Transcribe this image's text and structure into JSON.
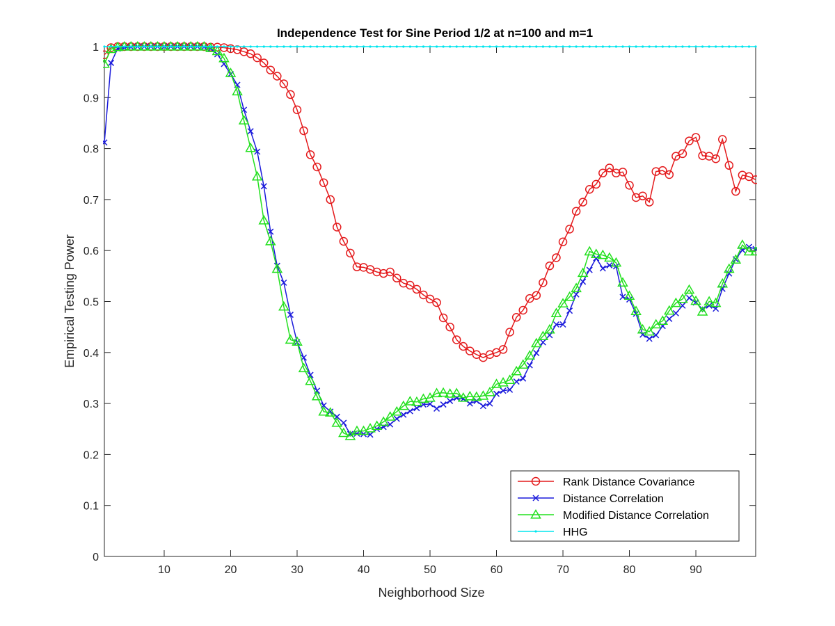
{
  "chart_data": {
    "type": "line",
    "title": "Independence Test for Sine Period 1/2 at n=100 and m=1",
    "xlabel": "Neighborhood Size",
    "ylabel": "Empirical Testing Power",
    "xlim": [
      1,
      99
    ],
    "ylim": [
      0,
      1
    ],
    "xticks": [
      10,
      20,
      30,
      40,
      50,
      60,
      70,
      80,
      90
    ],
    "yticks": [
      0,
      0.1,
      0.2,
      0.3,
      0.4,
      0.5,
      0.6,
      0.7,
      0.8,
      0.9,
      1
    ],
    "ytick_labels": [
      "0",
      "0.1",
      "0.2",
      "0.3",
      "0.4",
      "0.5",
      "0.6",
      "0.7",
      "0.8",
      "0.9",
      "1"
    ],
    "grid": false,
    "legend_position": "bottom-right",
    "x": [
      1,
      2,
      3,
      4,
      5,
      6,
      7,
      8,
      9,
      10,
      11,
      12,
      13,
      14,
      15,
      16,
      17,
      18,
      19,
      20,
      21,
      22,
      23,
      24,
      25,
      26,
      27,
      28,
      29,
      30,
      31,
      32,
      33,
      34,
      35,
      36,
      37,
      38,
      39,
      40,
      41,
      42,
      43,
      44,
      45,
      46,
      47,
      48,
      49,
      50,
      51,
      52,
      53,
      54,
      55,
      56,
      57,
      58,
      59,
      60,
      61,
      62,
      63,
      64,
      65,
      66,
      67,
      68,
      69,
      70,
      71,
      72,
      73,
      74,
      75,
      76,
      77,
      78,
      79,
      80,
      81,
      82,
      83,
      84,
      85,
      86,
      87,
      88,
      89,
      90,
      91,
      92,
      93,
      94,
      95,
      96,
      97,
      98,
      99
    ],
    "series": [
      {
        "name": "Rank Distance Covariance",
        "color": "#e41a1c",
        "marker": "circle",
        "values": [
          0.984,
          0.998,
          1,
          1,
          1,
          1,
          1,
          1,
          1,
          1,
          1,
          1,
          1,
          1,
          1,
          1,
          0.999,
          0.999,
          0.998,
          0.996,
          0.994,
          0.99,
          0.986,
          0.978,
          0.968,
          0.954,
          0.942,
          0.927,
          0.906,
          0.876,
          0.835,
          0.788,
          0.764,
          0.733,
          0.7,
          0.646,
          0.618,
          0.595,
          0.568,
          0.567,
          0.563,
          0.558,
          0.555,
          0.558,
          0.546,
          0.536,
          0.532,
          0.524,
          0.513,
          0.505,
          0.498,
          0.468,
          0.45,
          0.425,
          0.412,
          0.403,
          0.396,
          0.39,
          0.396,
          0.4,
          0.406,
          0.44,
          0.469,
          0.483,
          0.506,
          0.512,
          0.537,
          0.57,
          0.586,
          0.617,
          0.642,
          0.677,
          0.695,
          0.72,
          0.73,
          0.752,
          0.762,
          0.752,
          0.754,
          0.728,
          0.704,
          0.707,
          0.695,
          0.755,
          0.757,
          0.749,
          0.785,
          0.79,
          0.815,
          0.822,
          0.786,
          0.785,
          0.78,
          0.818,
          0.767,
          0.716,
          0.748,
          0.745,
          0.739
        ]
      },
      {
        "name": "Distance Correlation",
        "color": "#1a1adb",
        "marker": "x",
        "values": [
          0.812,
          0.968,
          0.996,
          0.998,
          0.999,
          1,
          1,
          1,
          1,
          1,
          1,
          1,
          1,
          1,
          1,
          0.999,
          0.996,
          0.985,
          0.966,
          0.946,
          0.925,
          0.876,
          0.834,
          0.794,
          0.726,
          0.637,
          0.57,
          0.537,
          0.474,
          0.42,
          0.39,
          0.356,
          0.325,
          0.296,
          0.284,
          0.274,
          0.262,
          0.24,
          0.241,
          0.24,
          0.239,
          0.25,
          0.254,
          0.259,
          0.27,
          0.278,
          0.285,
          0.291,
          0.298,
          0.299,
          0.29,
          0.298,
          0.305,
          0.311,
          0.309,
          0.3,
          0.305,
          0.295,
          0.3,
          0.319,
          0.325,
          0.327,
          0.343,
          0.349,
          0.375,
          0.399,
          0.42,
          0.434,
          0.455,
          0.455,
          0.482,
          0.514,
          0.539,
          0.562,
          0.585,
          0.565,
          0.571,
          0.569,
          0.509,
          0.504,
          0.476,
          0.435,
          0.427,
          0.434,
          0.452,
          0.466,
          0.477,
          0.492,
          0.507,
          0.498,
          0.485,
          0.492,
          0.486,
          0.525,
          0.555,
          0.583,
          0.601,
          0.607,
          0.603
        ]
      },
      {
        "name": "Modified Distance Correlation",
        "color": "#22e01e",
        "marker": "triangle",
        "values": [
          0.966,
          0.995,
          0.999,
          1,
          1,
          1,
          1,
          1,
          1,
          1,
          1,
          1,
          1,
          1,
          1,
          1,
          0.997,
          0.991,
          0.977,
          0.948,
          0.912,
          0.855,
          0.801,
          0.745,
          0.659,
          0.618,
          0.564,
          0.49,
          0.425,
          0.421,
          0.369,
          0.344,
          0.314,
          0.284,
          0.282,
          0.262,
          0.242,
          0.236,
          0.246,
          0.246,
          0.251,
          0.256,
          0.264,
          0.274,
          0.284,
          0.295,
          0.304,
          0.303,
          0.309,
          0.311,
          0.32,
          0.321,
          0.319,
          0.32,
          0.311,
          0.314,
          0.313,
          0.315,
          0.322,
          0.338,
          0.341,
          0.346,
          0.363,
          0.376,
          0.394,
          0.418,
          0.432,
          0.445,
          0.477,
          0.496,
          0.509,
          0.526,
          0.556,
          0.598,
          0.593,
          0.591,
          0.586,
          0.576,
          0.537,
          0.511,
          0.481,
          0.445,
          0.441,
          0.455,
          0.462,
          0.482,
          0.497,
          0.505,
          0.523,
          0.501,
          0.48,
          0.5,
          0.497,
          0.535,
          0.564,
          0.582,
          0.611,
          0.598,
          0.598
        ]
      },
      {
        "name": "HHG",
        "color": "#00e5ee",
        "marker": "dot",
        "values": [
          1,
          1,
          1,
          1,
          1,
          1,
          1,
          1,
          1,
          1,
          1,
          1,
          1,
          1,
          1,
          1,
          1,
          1,
          1,
          1,
          1,
          1,
          1,
          1,
          1,
          1,
          1,
          1,
          1,
          1,
          1,
          1,
          1,
          1,
          1,
          1,
          1,
          1,
          1,
          1,
          1,
          1,
          1,
          1,
          1,
          1,
          1,
          1,
          1,
          1,
          1,
          1,
          1,
          1,
          1,
          1,
          1,
          1,
          1,
          1,
          1,
          1,
          1,
          1,
          1,
          1,
          1,
          1,
          1,
          1,
          1,
          1,
          1,
          1,
          1,
          1,
          1,
          1,
          1,
          1,
          1,
          1,
          1,
          1,
          1,
          1,
          1,
          1,
          1,
          1,
          1,
          1,
          1,
          1,
          1,
          1,
          1,
          1,
          1
        ]
      }
    ]
  }
}
